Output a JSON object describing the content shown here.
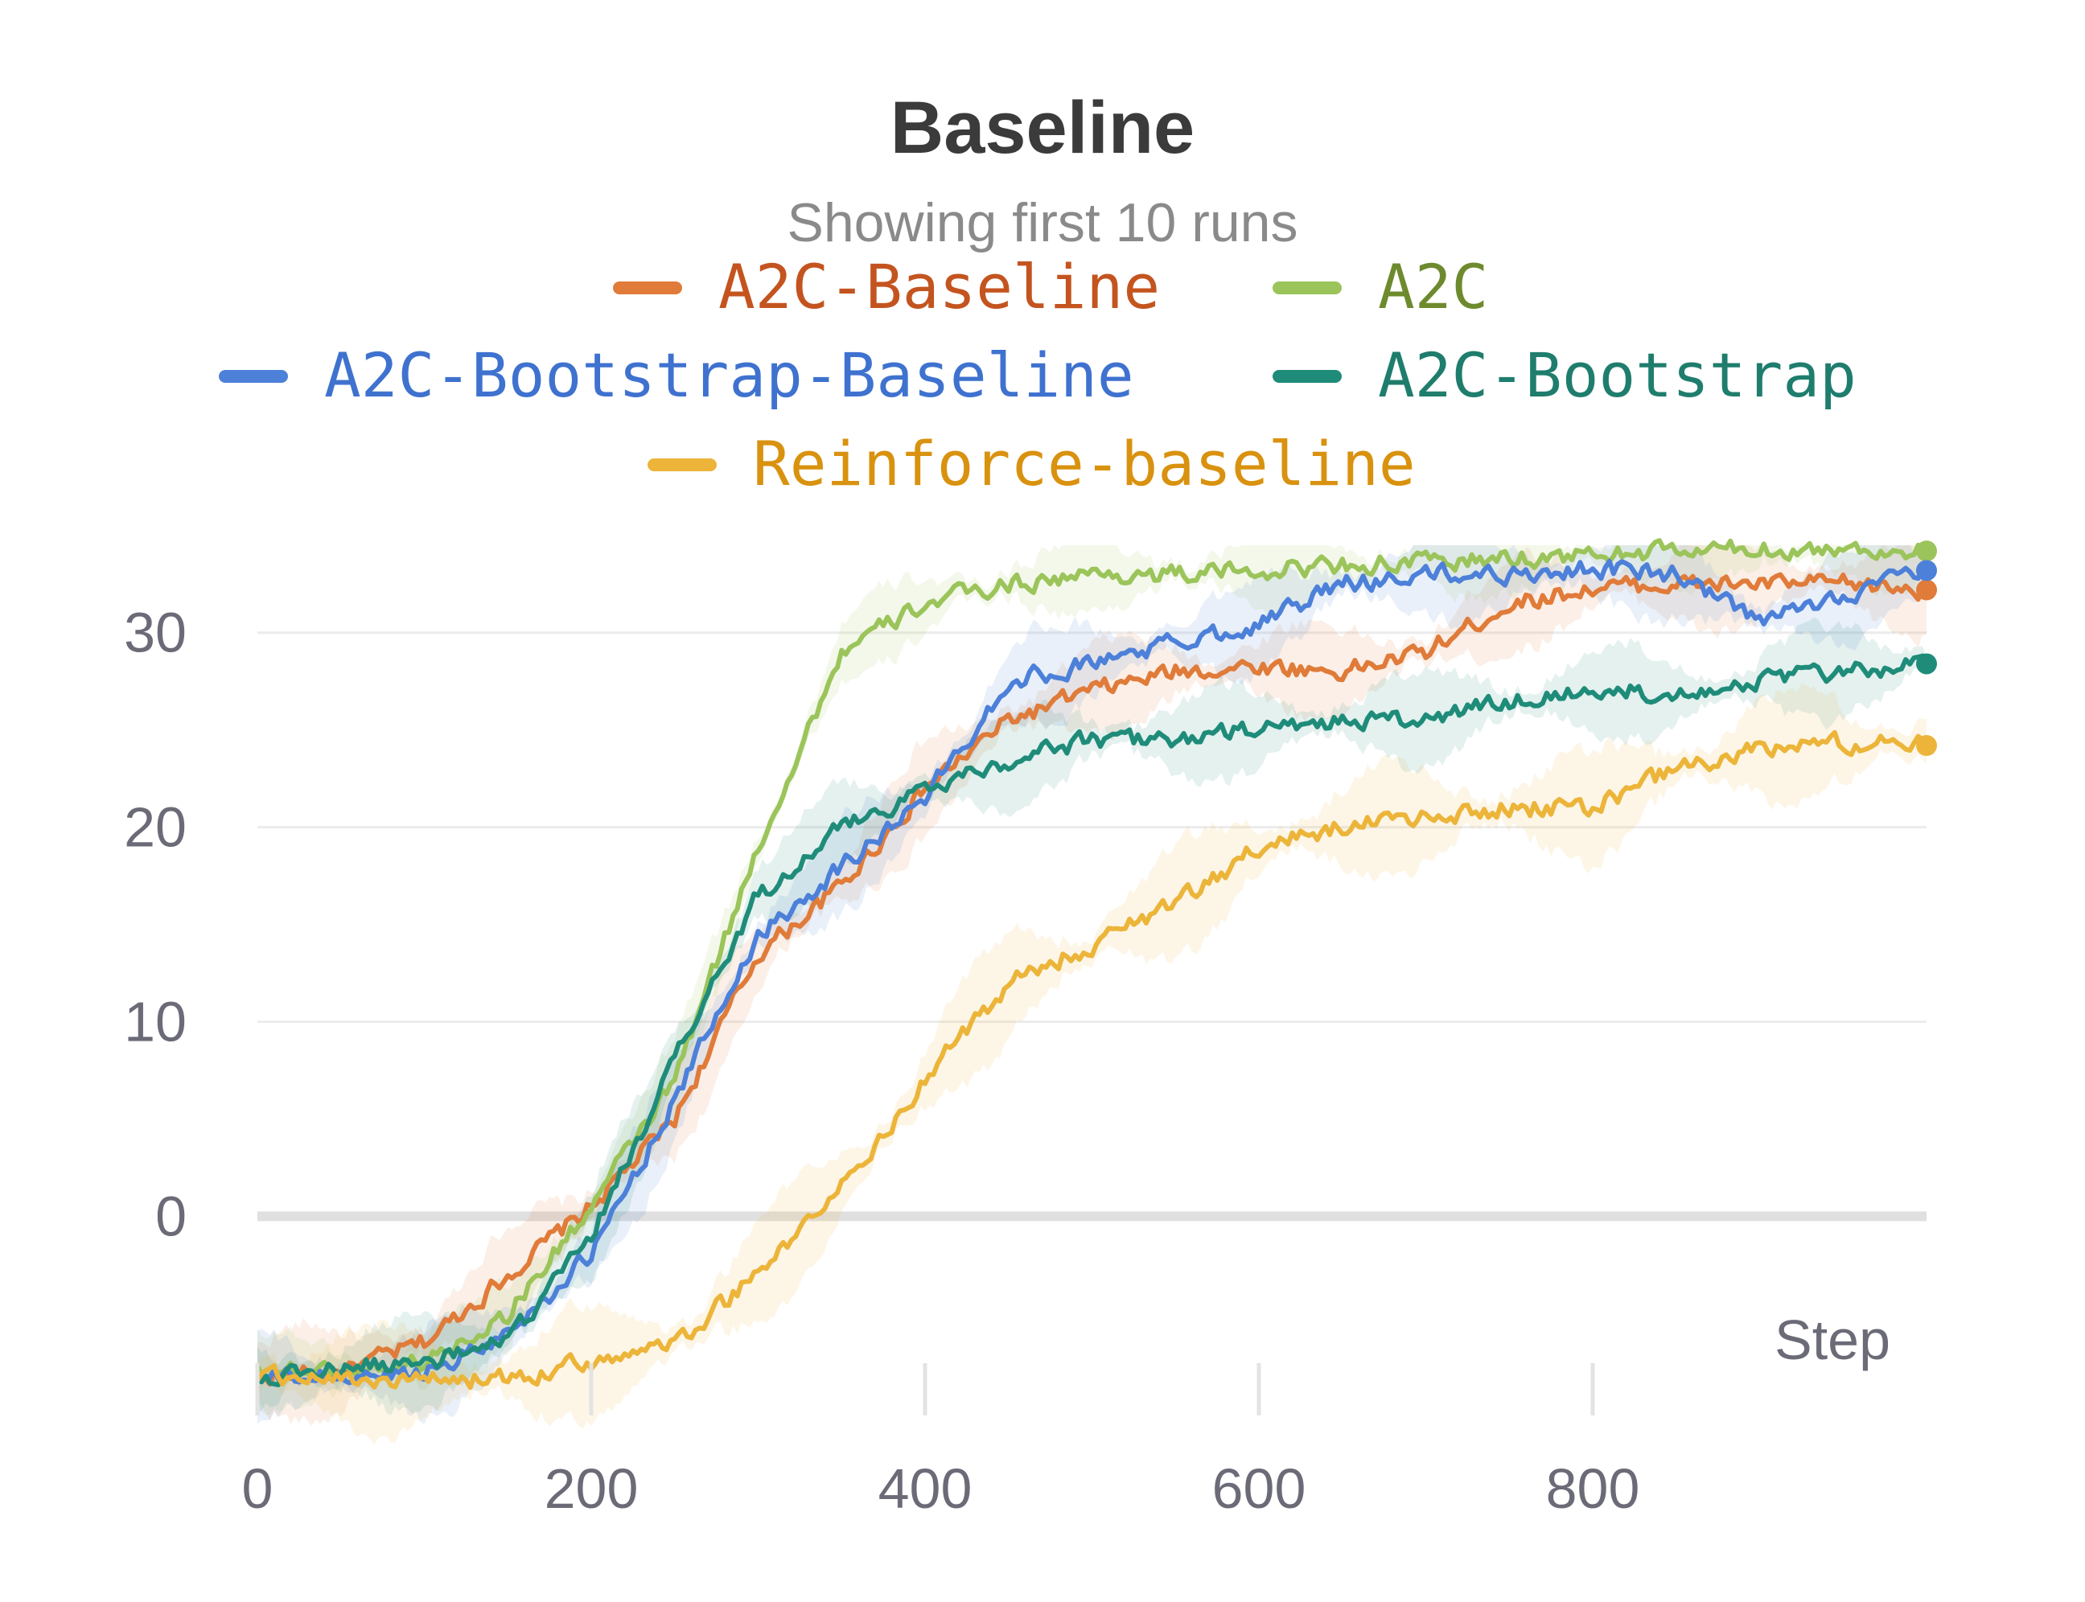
{
  "chart_data": {
    "type": "line",
    "title": "Baseline",
    "subtitle": "Showing first 10 runs",
    "xlabel": "Step",
    "ylabel": "",
    "xlim": [
      0,
      1000
    ],
    "ylim": [
      -9,
      34
    ],
    "x_ticks": [
      0,
      200,
      400,
      600,
      800
    ],
    "y_ticks": [
      0,
      10,
      20,
      30
    ],
    "grid": true,
    "legend_position": "top",
    "series": [
      {
        "name": "A2C-Baseline",
        "color": "#e07b39",
        "x": [
          0,
          50,
          100,
          150,
          200,
          250,
          300,
          350,
          400,
          450,
          500,
          550,
          600,
          650,
          700,
          750,
          800,
          850,
          900,
          950,
          1000
        ],
        "y": [
          -8.2,
          -8.0,
          -6.5,
          -3.0,
          0.5,
          5.0,
          13.5,
          17.0,
          22.0,
          25.5,
          27.0,
          28.0,
          28.3,
          28.0,
          29.0,
          31.5,
          32.3,
          32.5,
          32.5,
          32.5,
          32.2
        ],
        "band": 2.5
      },
      {
        "name": "A2C",
        "color": "#9bc45a",
        "x": [
          0,
          50,
          100,
          150,
          200,
          250,
          300,
          350,
          400,
          450,
          500,
          550,
          600,
          650,
          700,
          750,
          800,
          850,
          900,
          950,
          1000
        ],
        "y": [
          -7.8,
          -8.0,
          -7.5,
          -5.0,
          0.5,
          7.0,
          19.0,
          29.0,
          31.5,
          32.5,
          33.0,
          33.0,
          33.2,
          33.5,
          33.6,
          33.8,
          34.0,
          34.2,
          34.3,
          34.3,
          34.2
        ],
        "band": 2.0
      },
      {
        "name": "A2C-Bootstrap-Baseline",
        "color": "#4d80d9",
        "x": [
          0,
          50,
          100,
          150,
          200,
          250,
          300,
          350,
          400,
          450,
          500,
          550,
          600,
          650,
          700,
          750,
          800,
          850,
          900,
          950,
          1000
        ],
        "y": [
          -8.3,
          -8.3,
          -8.0,
          -6.0,
          -2.0,
          6.0,
          14.5,
          18.0,
          21.5,
          27.5,
          28.5,
          29.5,
          30.5,
          32.5,
          33.0,
          33.0,
          33.3,
          33.0,
          30.5,
          32.0,
          33.2
        ],
        "band": 2.5
      },
      {
        "name": "A2C-Bootstrap",
        "color": "#1f8c7a",
        "x": [
          0,
          50,
          100,
          150,
          200,
          250,
          300,
          350,
          400,
          450,
          500,
          550,
          600,
          650,
          700,
          750,
          800,
          850,
          900,
          950,
          1000
        ],
        "y": [
          -8.3,
          -7.8,
          -7.5,
          -6.5,
          -1.0,
          8.0,
          16.5,
          20.0,
          22.0,
          23.5,
          24.5,
          24.5,
          25.0,
          25.5,
          25.5,
          26.5,
          27.0,
          27.0,
          27.5,
          28.0,
          28.4
        ],
        "band": 2.5
      },
      {
        "name": "Reinforce-baseline",
        "color": "#ecb53a",
        "x": [
          0,
          50,
          100,
          150,
          200,
          250,
          300,
          350,
          400,
          450,
          500,
          550,
          600,
          650,
          700,
          750,
          800,
          850,
          900,
          950,
          1000
        ],
        "y": [
          -8.3,
          -8.3,
          -8.5,
          -8.3,
          -7.5,
          -6.5,
          -3.0,
          1.5,
          7.0,
          12.0,
          14.0,
          16.0,
          19.0,
          20.0,
          20.5,
          21.0,
          21.0,
          23.0,
          24.0,
          24.3,
          24.2
        ],
        "band": 3.0
      }
    ]
  }
}
